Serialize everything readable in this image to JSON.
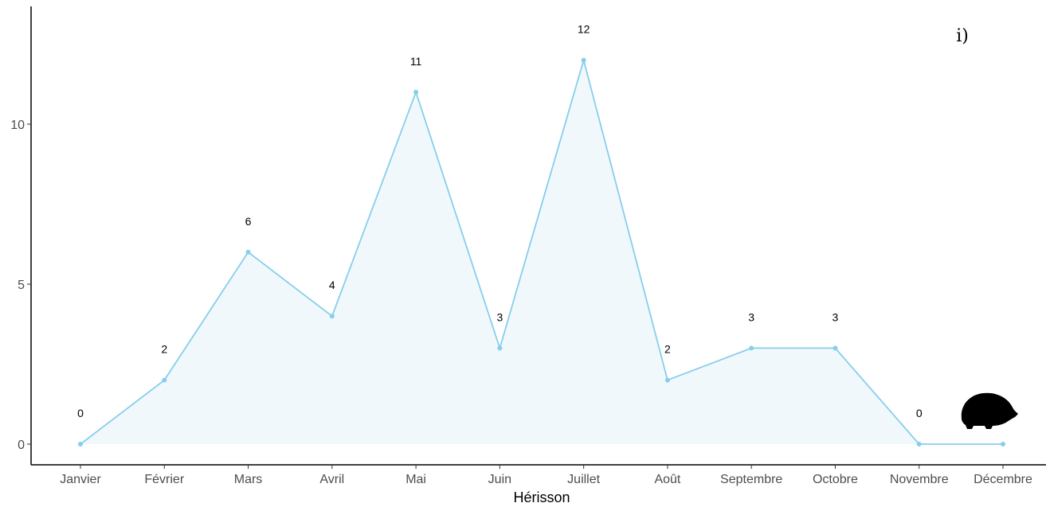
{
  "chart_data": {
    "type": "area",
    "categories": [
      "Janvier",
      "Février",
      "Mars",
      "Avril",
      "Mai",
      "Juin",
      "Juillet",
      "Août",
      "Septembre",
      "Octobre",
      "Novembre",
      "Décembre"
    ],
    "series": [
      {
        "values": [
          0,
          2,
          6,
          4,
          11,
          3,
          12,
          2,
          3,
          3,
          0,
          0
        ]
      }
    ],
    "data_labels": [
      "0",
      "2",
      "6",
      "4",
      "11",
      "3",
      "12",
      "2",
      "3",
      "3",
      "0",
      ""
    ],
    "xlabel": "Hérisson",
    "ylabel": "",
    "ylim": [
      0,
      12.5
    ],
    "yticks": [
      0,
      5,
      10
    ],
    "ytick_labels": [
      "0",
      "5",
      "10"
    ],
    "panel_tag": "i)",
    "grid": false,
    "colors": {
      "line": "#87ceeb",
      "fill": "#f0f8fc",
      "axis": "#000000"
    },
    "icon": "hedgehog-silhouette-icon"
  }
}
